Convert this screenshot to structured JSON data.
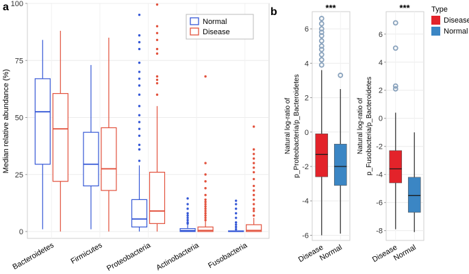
{
  "panel_a": {
    "label": "a",
    "ylabel": "Median relative abundance (%)",
    "legend": [
      "Normal",
      "Disease"
    ],
    "colors": {
      "Normal": "#3558d6",
      "Disease": "#e2513c"
    }
  },
  "panel_b": {
    "label": "b",
    "legend_title": "Type",
    "legend": [
      "Disease",
      "Normal"
    ],
    "colors": {
      "Disease": "#e3232a",
      "Normal": "#3b86c4"
    },
    "left_ylabel": [
      "Natural log-ratio of",
      "p_Proteobacteria/p_Bacteroidetes"
    ],
    "right_ylabel": [
      "Natural log-ratio of",
      "p_Fusobacteria/p_Bacteroidetes"
    ],
    "significance": "***"
  },
  "chart_data": [
    {
      "type": "box",
      "title": "",
      "xlabel": "",
      "ylabel": "Median relative abundance (%)",
      "ylim": [
        -3,
        100
      ],
      "yticks": [
        0,
        25,
        50,
        75,
        100
      ],
      "grid": true,
      "legend_position": "top-right",
      "categories": [
        "Bacteroidetes",
        "Firmicutes",
        "Proteobacteria",
        "Actinobacteria",
        "Fusobacteria"
      ],
      "series": [
        {
          "name": "Normal",
          "boxes": [
            {
              "min": 1,
              "q1": 29.5,
              "median": 52.5,
              "q3": 67,
              "max": 84,
              "outliers": []
            },
            {
              "min": 1,
              "q1": 20,
              "median": 29.5,
              "q3": 43.5,
              "max": 73,
              "outliers": []
            },
            {
              "min": 0,
              "q1": 2,
              "median": 5.5,
              "q3": 14,
              "max": 29,
              "outliers": [
                31,
                36,
                38,
                42,
                45,
                48,
                51,
                55,
                60,
                64,
                67,
                70,
                74,
                80,
                83,
                86,
                95
              ]
            },
            {
              "min": 0,
              "q1": 0,
              "median": 0.4,
              "q3": 1.3,
              "max": 3,
              "outliers": [
                3.5,
                4,
                5,
                6,
                7,
                8,
                10,
                12,
                14.5
              ]
            },
            {
              "min": 0,
              "q1": 0,
              "median": 0.1,
              "q3": 0.3,
              "max": 0.8,
              "outliers": [
                1,
                2,
                3,
                4,
                6,
                8,
                10,
                12,
                13.5
              ]
            }
          ]
        },
        {
          "name": "Disease",
          "boxes": [
            {
              "min": 0,
              "q1": 22,
              "median": 45,
              "q3": 60.5,
              "max": 88,
              "outliers": []
            },
            {
              "min": 0,
              "q1": 18,
              "median": 27.5,
              "q3": 45.5,
              "max": 85,
              "outliers": []
            },
            {
              "min": 0,
              "q1": 3.5,
              "median": 9,
              "q3": 26,
              "max": 55,
              "outliers": [
                60,
                65,
                66.5,
                68,
                78,
                80,
                84,
                87,
                90,
                99.5
              ]
            },
            {
              "min": 0,
              "q1": 0,
              "median": 0.5,
              "q3": 2,
              "max": 4.5,
              "outliers": [
                5,
                6,
                7,
                8,
                9,
                10,
                11,
                12,
                13,
                14,
                16,
                19,
                22,
                25,
                30,
                68
              ]
            },
            {
              "min": 0,
              "q1": 0,
              "median": 0.5,
              "q3": 3,
              "max": 6,
              "outliers": [
                7,
                9,
                10,
                12,
                14,
                16,
                18,
                20,
                23,
                26,
                28,
                30,
                32,
                34,
                36,
                46
              ]
            }
          ]
        }
      ]
    },
    {
      "type": "box",
      "title": "",
      "ylabel": "Natural log-ratio of p_Proteobacteria/p_Bacteroidetes",
      "ylim": [
        -6.3,
        7
      ],
      "yticks": [
        -6,
        -4,
        -2,
        0,
        2,
        4,
        6
      ],
      "grid": true,
      "categories": [
        "Disease",
        "Normal"
      ],
      "annotation": "***",
      "boxes": [
        {
          "name": "Disease",
          "min": -6,
          "q1": -2.6,
          "median": -1.3,
          "q3": -0.1,
          "max": 3.6,
          "outliers": [
            3.9,
            4.2,
            4.5,
            4.8,
            5.0,
            5.3,
            5.6,
            5.8,
            6.0,
            6.3,
            6.6
          ]
        },
        {
          "name": "Normal",
          "min": -5.9,
          "q1": -3.1,
          "median": -2,
          "q3": -0.7,
          "max": 2.5,
          "outliers": [
            3.3
          ]
        }
      ]
    },
    {
      "type": "box",
      "title": "",
      "ylabel": "Natural log-ratio of p_Fusobacteria/p_Bacteroidetes",
      "ylim": [
        -8.7,
        7.6
      ],
      "yticks": [
        -8,
        -6,
        -4,
        -2,
        0,
        2,
        4,
        6
      ],
      "grid": true,
      "categories": [
        "Disease",
        "Normal"
      ],
      "annotation": "***",
      "legend_title": "Type",
      "legend_position": "right",
      "boxes": [
        {
          "name": "Disease",
          "min": -7.9,
          "q1": -4.6,
          "median": -3.6,
          "q3": -2.3,
          "max": 0.4,
          "outliers": [
            2.1,
            2.3,
            5.0,
            6.8
          ]
        },
        {
          "name": "Normal",
          "min": -8.1,
          "q1": -6.7,
          "median": -5.5,
          "q3": -4.2,
          "max": -1.0,
          "outliers": []
        }
      ]
    }
  ]
}
